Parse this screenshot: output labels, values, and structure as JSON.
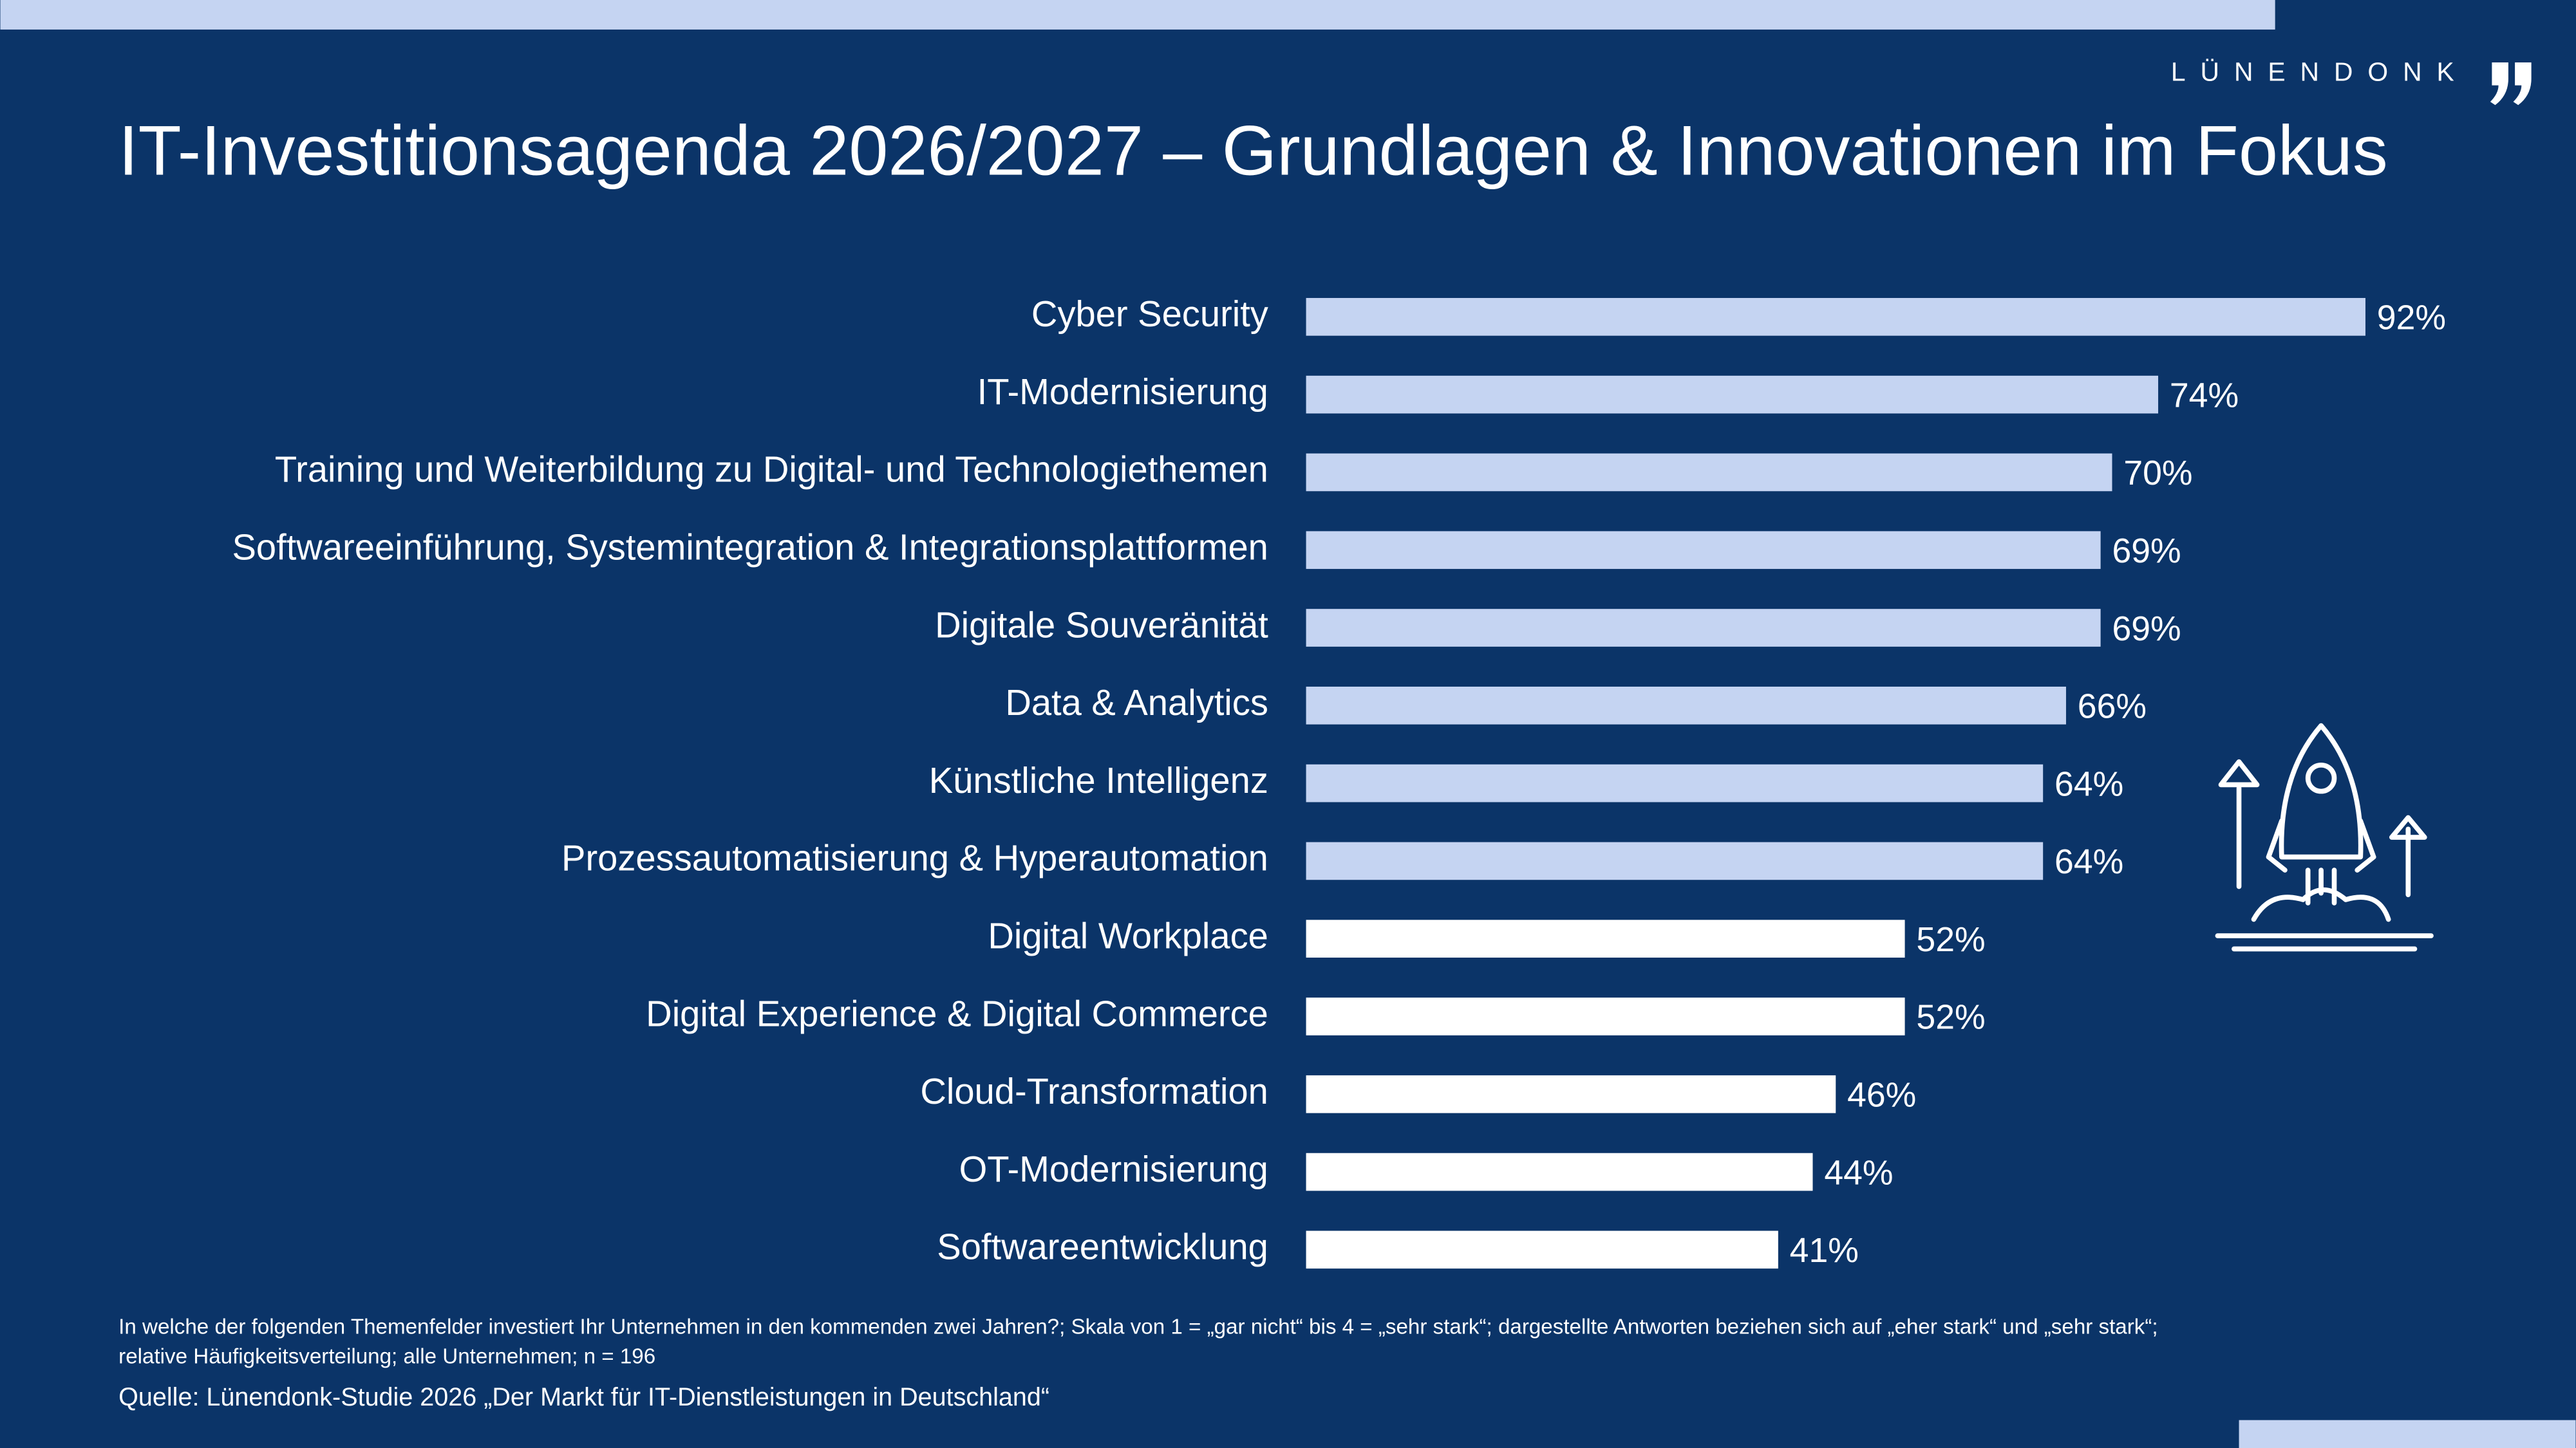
{
  "logo": "LÜNENDONK",
  "chart_data": {
    "type": "bar",
    "orientation": "horizontal",
    "title": "IT-Investitionsagenda 2026/2027 – Grundlagen & Innovationen im Fokus",
    "categories": [
      "Cyber Security",
      "IT-Modernisierung",
      "Training und Weiterbildung zu Digital- und Technologiethemen",
      "Softwareeinführung, Systemintegration & Integrationsplattformen",
      "Digitale Souveränität",
      "Data & Analytics",
      "Künstliche Intelligenz",
      "Prozessautomatisierung & Hyperautomation",
      "Digital Workplace",
      "Digital Experience & Digital Commerce",
      "Cloud-Transformation",
      "OT-Modernisierung",
      "Softwareentwicklung"
    ],
    "values": [
      92,
      74,
      70,
      69,
      69,
      66,
      64,
      64,
      52,
      52,
      46,
      44,
      41
    ],
    "value_labels": [
      "92%",
      "74%",
      "70%",
      "69%",
      "69%",
      "66%",
      "64%",
      "64%",
      "52%",
      "52%",
      "46%",
      "44%",
      "41%"
    ],
    "colors": [
      "#c5d4f2",
      "#c5d4f2",
      "#c5d4f2",
      "#c5d4f2",
      "#c5d4f2",
      "#c5d4f2",
      "#c5d4f2",
      "#c5d4f2",
      "#ffffff",
      "#ffffff",
      "#ffffff",
      "#ffffff",
      "#ffffff"
    ],
    "note": [
      "In welche der folgenden Themenfelder investiert Ihr Unternehmen in den kommenden zwei Jahren?; Skala von 1 = „gar nicht“ bis 4 = „sehr stark“; dargestellte Antworten beziehen sich auf „eher stark“ und „sehr stark“;",
      "relative Häufigkeitsverteilung; alle Unternehmen; n = 196"
    ],
    "source": "Quelle: Lünendonk-Studie 2026 „Der Markt für IT-Dienstleistungen in Deutschland“"
  }
}
